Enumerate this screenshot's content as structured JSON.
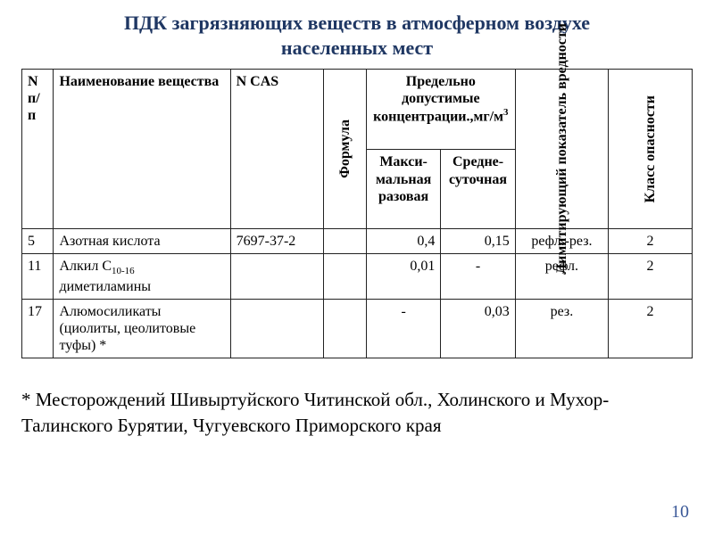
{
  "title_color": "#1f3763",
  "pagenum_color": "#3b5998",
  "title_line1": "ПДК загрязняющих веществ в атмосферном воздухе",
  "title_line2": "населенных мест",
  "headers": {
    "n": "N п/п",
    "name": "Наименование вещества",
    "cas": "N CAS",
    "formula": "Формула",
    "conc_group_1": "Предельно допустимые концентрации.,мг/м",
    "conc_group_sup": "3",
    "max": "Макси-мальная разовая",
    "avg": "Средне-суточная",
    "limiting": "Лимитирующий показатель вредности",
    "hazclass": "Класс опасности"
  },
  "rows": [
    {
      "n": "5",
      "name": "Азотная кислота",
      "sub": "",
      "cas": "7697-37-2",
      "formula": "",
      "max": "0,4",
      "avg": "0,15",
      "lim": "рефл.-рез.",
      "cls": "2"
    },
    {
      "n": "11",
      "name": "Алкил С",
      "sub": "10-16",
      "name2": " диметиламины",
      "cas": "",
      "formula": "",
      "max": "0,01",
      "avg": "-",
      "lim": "рефл.",
      "cls": "2"
    },
    {
      "n": "17",
      "name": "Алюмосиликаты (циолиты, цеолитовые туфы) *",
      "sub": "",
      "cas": "",
      "formula": "",
      "max": "-",
      "avg": "0,03",
      "lim": "рез.",
      "cls": "2"
    }
  ],
  "footnote": "* Месторождений  Шивыртуйского  Читинской обл., Холинского  и Мухор-Талинского Бурятии, Чугуевского Приморского края",
  "pagenum": "10"
}
